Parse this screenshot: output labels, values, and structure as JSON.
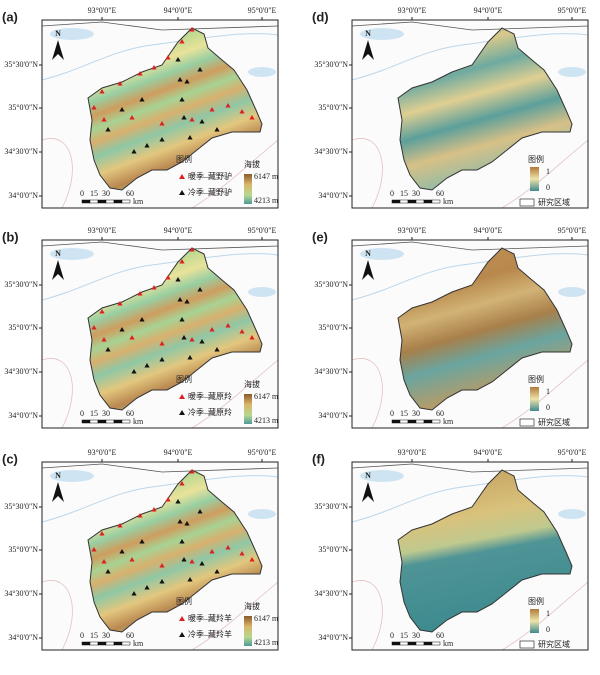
{
  "panels": [
    {
      "label": "(a)",
      "lon_ticks": [
        "93°0'0\"E",
        "94°0'0\"E",
        "95°0'0\"E"
      ],
      "lat_ticks": [
        "35°30'0\"N",
        "35°0'0\"N",
        "34°30'0\"N",
        "34°0'0\"N"
      ],
      "north": "N",
      "legend": {
        "title": "图例",
        "warm": "暖季–藏野驴",
        "cold": "冷季–藏野驴",
        "bar_title": "海拔",
        "bar_max": "6147 m",
        "bar_min": "4213 m"
      },
      "scale": {
        "ticks": [
          0,
          15,
          30,
          60
        ],
        "unit": "km"
      }
    },
    {
      "label": "(d)",
      "lon_ticks": [
        "93°0'0\"E",
        "94°0'0\"E",
        "95°0'0\"E"
      ],
      "lat_ticks": [
        "35°30'0\"N",
        "35°0'0\"N",
        "34°30'0\"N",
        "34°0'0\"N"
      ],
      "north": "N",
      "legend": {
        "title": "图例",
        "bar_max": 1,
        "bar_min": 0,
        "region": "研究区域"
      },
      "scale": {
        "ticks": [
          0,
          15,
          30,
          60
        ],
        "unit": "km"
      }
    },
    {
      "label": "(b)",
      "lon_ticks": [
        "93°0'0\"E",
        "94°0'0\"E",
        "95°0'0\"E"
      ],
      "lat_ticks": [
        "35°30'0\"N",
        "35°0'0\"N",
        "34°30'0\"N",
        "34°0'0\"N"
      ],
      "north": "N",
      "legend": {
        "title": "图例",
        "warm": "暖季–藏原羚",
        "cold": "冷季–藏原羚",
        "bar_title": "海拔",
        "bar_max": "6147 m",
        "bar_min": "4213 m"
      },
      "scale": {
        "ticks": [
          0,
          15,
          30,
          60
        ],
        "unit": "km"
      }
    },
    {
      "label": "(e)",
      "lon_ticks": [
        "93°0'0\"E",
        "94°0'0\"E",
        "95°0'0\"E"
      ],
      "lat_ticks": [
        "35°30'0\"N",
        "35°0'0\"N",
        "34°30'0\"N",
        "34°0'0\"N"
      ],
      "north": "N",
      "legend": {
        "title": "图例",
        "bar_max": 1,
        "bar_min": 0,
        "region": "研究区域"
      },
      "scale": {
        "ticks": [
          0,
          15,
          30,
          60
        ],
        "unit": "km"
      }
    },
    {
      "label": "(c)",
      "lon_ticks": [
        "93°0'0\"E",
        "94°0'0\"E",
        "95°0'0\"E"
      ],
      "lat_ticks": [
        "35°30'0\"N",
        "35°0'0\"N",
        "34°30'0\"N",
        "34°0'0\"N"
      ],
      "north": "N",
      "legend": {
        "title": "图例",
        "warm": "暖季–藏羚羊",
        "cold": "冷季–藏羚羊",
        "bar_title": "海拔",
        "bar_max": "6147 m",
        "bar_min": "4213 m"
      },
      "scale": {
        "ticks": [
          0,
          15,
          30,
          60
        ],
        "unit": "km"
      }
    },
    {
      "label": "(f)",
      "lon_ticks": [
        "93°0'0\"E",
        "94°0'0\"E",
        "95°0'0\"E"
      ],
      "lat_ticks": [
        "35°30'0\"N",
        "35°0'0\"N",
        "34°30'0\"N",
        "34°0'0\"N"
      ],
      "north": "N",
      "legend": {
        "title": "图例",
        "bar_max": 1,
        "bar_min": 0,
        "region": "研究区域"
      },
      "scale": {
        "ticks": [
          0,
          15,
          30,
          60
        ],
        "unit": "km"
      }
    }
  ]
}
